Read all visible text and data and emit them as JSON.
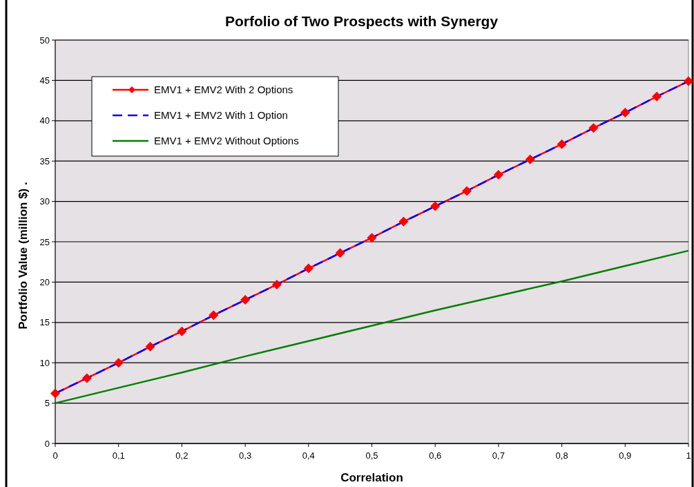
{
  "chart_data": {
    "type": "line",
    "title": "Porfolio of Two Prospects with Synergy",
    "xlabel": "Correlation",
    "ylabel": "Portfolio Value (million $) .",
    "x": [
      0,
      0.05,
      0.1,
      0.15,
      0.2,
      0.25,
      0.3,
      0.35,
      0.4,
      0.45,
      0.5,
      0.55,
      0.6,
      0.65,
      0.7,
      0.75,
      0.8,
      0.85,
      0.9,
      0.95,
      1
    ],
    "series": [
      {
        "name": "EMV1 + EMV2 With 2 Options",
        "color": "#ff0000",
        "marker": "diamond",
        "line_style": "solid",
        "values": [
          6.2,
          8.1,
          10.0,
          12.0,
          13.9,
          15.9,
          17.8,
          19.7,
          21.7,
          23.6,
          25.5,
          27.5,
          29.4,
          31.3,
          33.3,
          35.2,
          37.1,
          39.1,
          41.0,
          43.0,
          44.9
        ]
      },
      {
        "name": "EMV1 + EMV2 With 1 Option",
        "color": "#0000ff",
        "marker": "none",
        "line_style": "dashed",
        "values": [
          6.2,
          8.1,
          10.0,
          12.0,
          13.9,
          15.9,
          17.8,
          19.7,
          21.7,
          23.6,
          25.5,
          27.5,
          29.4,
          31.3,
          33.3,
          35.2,
          37.1,
          39.1,
          41.0,
          43.0,
          44.9
        ]
      },
      {
        "name": "EMV1 + EMV2 Without Options",
        "color": "#008000",
        "marker": "none",
        "line_style": "solid",
        "x": [
          0,
          0.1,
          0.2,
          0.3,
          0.4,
          0.5,
          0.6,
          0.7,
          0.8,
          0.9,
          1
        ],
        "values": [
          5.0,
          6.9,
          8.8,
          10.8,
          12.7,
          14.6,
          16.5,
          18.3,
          20.1,
          22.0,
          23.9
        ]
      }
    ],
    "xlim": [
      0,
      1
    ],
    "xticks": [
      0,
      {
        "value": 0.1,
        "label": "0,1"
      },
      {
        "value": 0.2,
        "label": "0,2"
      },
      {
        "value": 0.3,
        "label": "0,3"
      },
      {
        "value": 0.4,
        "label": "0,4"
      },
      {
        "value": 0.5,
        "label": "0,5"
      },
      {
        "value": 0.6,
        "label": "0,6"
      },
      {
        "value": 0.7,
        "label": "0,7"
      },
      {
        "value": 0.8,
        "label": "0,8"
      },
      {
        "value": 0.9,
        "label": "0,9"
      },
      1
    ],
    "ylim": [
      0,
      50
    ],
    "yticks": [
      0,
      5,
      10,
      15,
      20,
      25,
      30,
      35,
      40,
      45,
      50
    ],
    "grid": "y",
    "legend": "top left"
  }
}
